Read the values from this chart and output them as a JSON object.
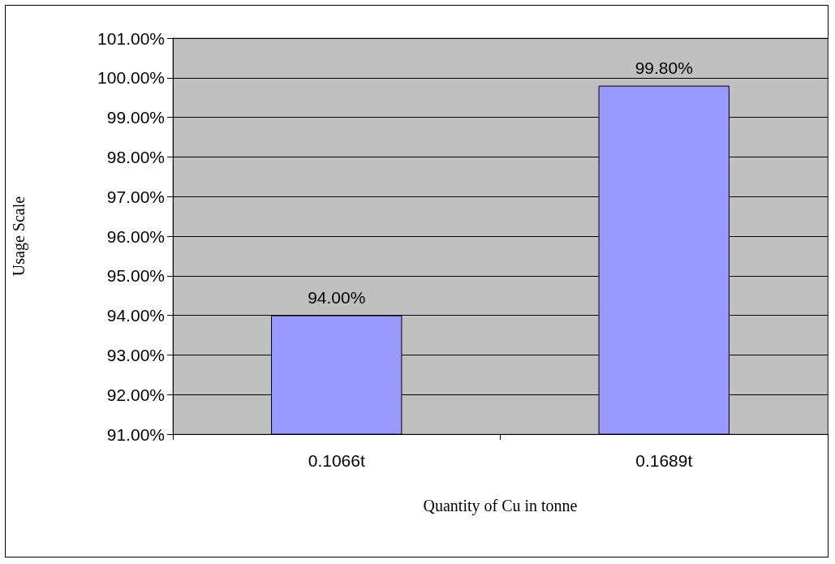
{
  "chart_data": {
    "type": "bar",
    "xlabel": "Quantity of Cu in tonne",
    "ylabel": "Usage Scale",
    "categories": [
      "0.1066t",
      "0.1689t"
    ],
    "values": [
      94.0,
      99.8
    ],
    "color": "#9999ff",
    "value_labels": [
      "94.00%",
      "99.80%"
    ],
    "ylim": [
      91,
      101
    ],
    "yticks": [
      {
        "value": 91,
        "label": "91.00%"
      },
      {
        "value": 92,
        "label": "92.00%"
      },
      {
        "value": 93,
        "label": "93.00%"
      },
      {
        "value": 94,
        "label": "94.00%"
      },
      {
        "value": 95,
        "label": "95.00%"
      },
      {
        "value": 96,
        "label": "96.00%"
      },
      {
        "value": 97,
        "label": "97.00%"
      },
      {
        "value": 98,
        "label": "98.00%"
      },
      {
        "value": 99,
        "label": "99.00%"
      },
      {
        "value": 100,
        "label": "100.00%"
      },
      {
        "value": 101,
        "label": "101.00%"
      }
    ],
    "grid": "y"
  }
}
